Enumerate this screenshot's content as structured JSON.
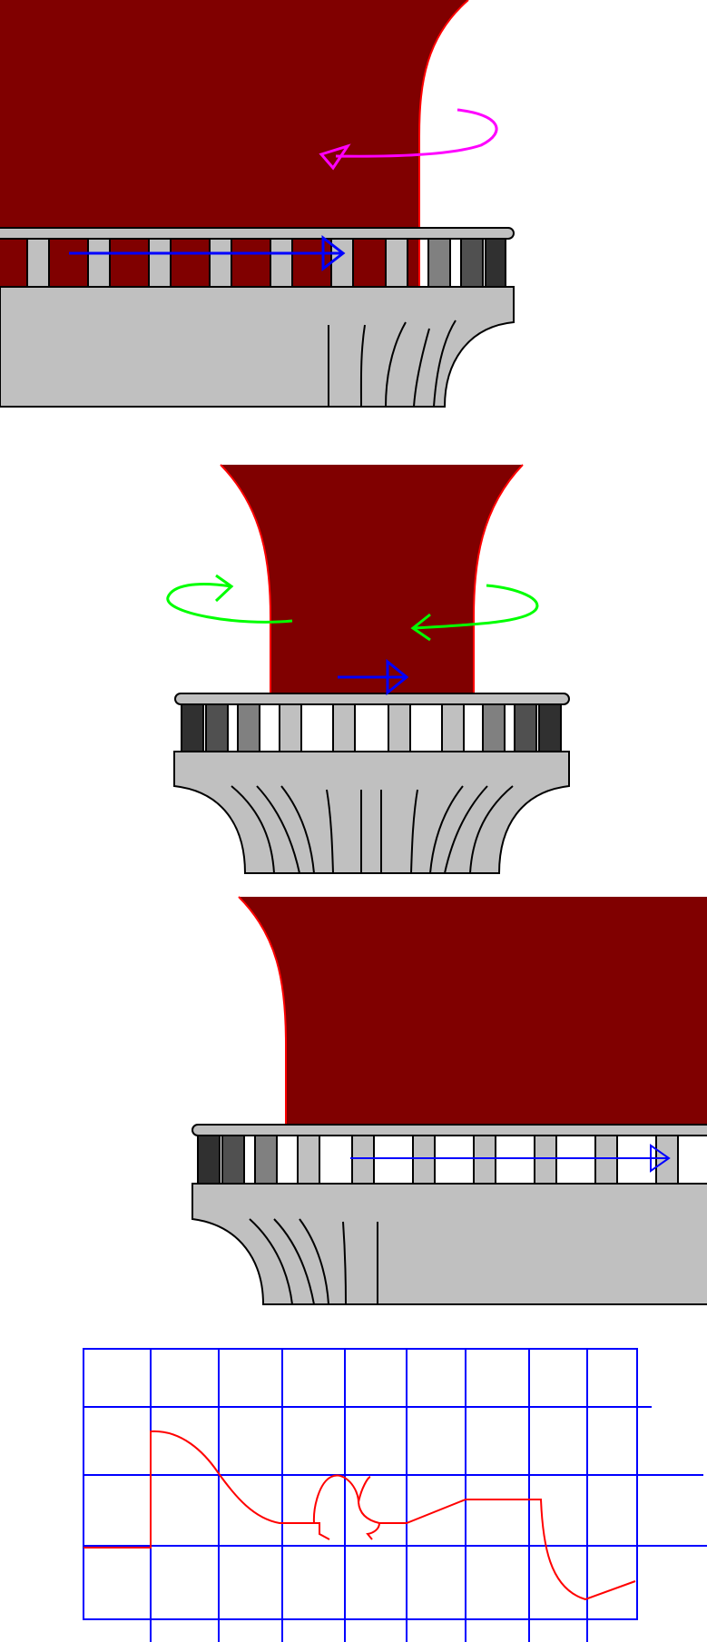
{
  "colors": {
    "column": "#800000",
    "column_edge": "#ff0000",
    "stone": "#c0c0c0",
    "stone_dark": "#808080",
    "stone_darker": "#505050",
    "stone_darkest": "#303030",
    "outline": "#000000",
    "arrow_translate": "#0000ff",
    "arrow_rotate_top": "#ff00ff",
    "arrow_rotate_middle": "#00ff00",
    "grid": "#0000ff",
    "profile": "#ff0000"
  },
  "panels": [
    {
      "name": "panel-top-rotated-view",
      "arrows": [
        "rotate-arrow-magenta",
        "translate-arrow-right"
      ]
    },
    {
      "name": "panel-middle-front-view",
      "arrows": [
        "rotate-arrow-green-left",
        "rotate-arrow-green-right",
        "translate-arrow-short"
      ]
    },
    {
      "name": "panel-bottom-rotated-view",
      "arrows": [
        "translate-arrow-thin"
      ]
    },
    {
      "name": "panel-profile-grid",
      "arrows": []
    }
  ]
}
